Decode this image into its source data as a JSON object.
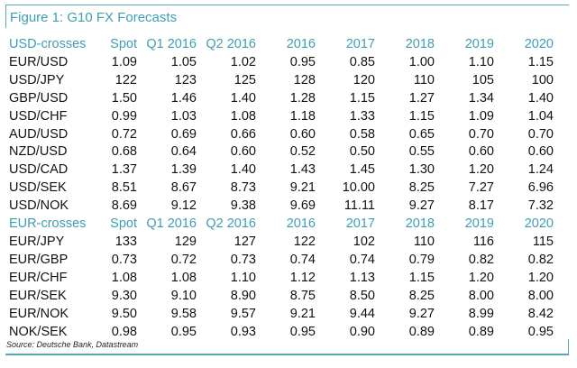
{
  "title": "Figure 1: G10 FX Forecasts",
  "source": "Source: Deutsche Bank, Datastream",
  "colors": {
    "accent": "#3f9db3"
  },
  "sections": [
    {
      "header": [
        "USD-crosses",
        "Spot",
        "Q1 2016",
        "Q2 2016",
        "2016",
        "2017",
        "2018",
        "2019",
        "2020"
      ],
      "rows": [
        [
          "EUR/USD",
          "1.09",
          "1.05",
          "1.02",
          "0.95",
          "0.85",
          "1.00",
          "1.10",
          "1.15"
        ],
        [
          "USD/JPY",
          "122",
          "123",
          "125",
          "128",
          "120",
          "110",
          "105",
          "100"
        ],
        [
          "GBP/USD",
          "1.50",
          "1.46",
          "1.40",
          "1.28",
          "1.15",
          "1.27",
          "1.34",
          "1.40"
        ],
        [
          "USD/CHF",
          "0.99",
          "1.03",
          "1.08",
          "1.18",
          "1.33",
          "1.15",
          "1.09",
          "1.04"
        ],
        [
          "AUD/USD",
          "0.72",
          "0.69",
          "0.66",
          "0.60",
          "0.58",
          "0.65",
          "0.70",
          "0.70"
        ],
        [
          "NZD/USD",
          "0.68",
          "0.64",
          "0.60",
          "0.52",
          "0.50",
          "0.55",
          "0.60",
          "0.60"
        ],
        [
          "USD/CAD",
          "1.37",
          "1.39",
          "1.40",
          "1.43",
          "1.45",
          "1.30",
          "1.20",
          "1.24"
        ],
        [
          "USD/SEK",
          "8.51",
          "8.67",
          "8.73",
          "9.21",
          "10.00",
          "8.25",
          "7.27",
          "6.96"
        ],
        [
          "USD/NOK",
          "8.69",
          "9.12",
          "9.38",
          "9.69",
          "11.11",
          "9.27",
          "8.17",
          "7.32"
        ]
      ]
    },
    {
      "header": [
        "EUR-crosses",
        "Spot",
        "Q1 2016",
        "Q2 2016",
        "2016",
        "2017",
        "2018",
        "2019",
        "2020"
      ],
      "rows": [
        [
          "EUR/JPY",
          "133",
          "129",
          "127",
          "122",
          "102",
          "110",
          "116",
          "115"
        ],
        [
          "EUR/GBP",
          "0.73",
          "0.72",
          "0.73",
          "0.74",
          "0.74",
          "0.79",
          "0.82",
          "0.82"
        ],
        [
          "EUR/CHF",
          "1.08",
          "1.08",
          "1.10",
          "1.12",
          "1.13",
          "1.15",
          "1.20",
          "1.20"
        ],
        [
          "EUR/SEK",
          "9.30",
          "9.10",
          "8.90",
          "8.75",
          "8.50",
          "8.25",
          "8.00",
          "8.00"
        ],
        [
          "EUR/NOK",
          "9.50",
          "9.58",
          "9.57",
          "9.21",
          "9.44",
          "9.27",
          "8.99",
          "8.42"
        ],
        [
          "NOK/SEK",
          "0.98",
          "0.95",
          "0.93",
          "0.95",
          "0.90",
          "0.89",
          "0.89",
          "0.95"
        ]
      ]
    }
  ]
}
